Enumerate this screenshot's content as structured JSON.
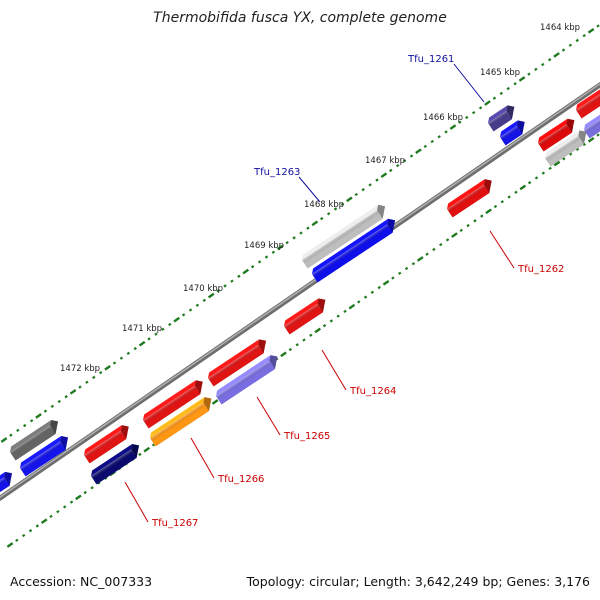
{
  "title": "Thermobifida fusca YX, complete genome",
  "footer": {
    "accession_label": "Accession:",
    "accession": "NC_007333",
    "topology": "Topology: circular; Length: 3,642,249 bp; Genes: 3,176"
  },
  "colors": {
    "backbone": "#808080",
    "tick": "#1e7a1e",
    "label_blue": "#1010a0",
    "label_red": "#cc0000"
  },
  "scale_labels": [
    "1464 kbp",
    "1465 kbp",
    "1466 kbp",
    "1467 kbp",
    "1468 kbp",
    "1469 kbp",
    "1470 kbp",
    "1471 kbp",
    "1472 kbp"
  ],
  "gene_labels": [
    {
      "name": "Tfu_1261",
      "color": "blue"
    },
    {
      "name": "Tfu_1263",
      "color": "blue"
    },
    {
      "name": "Tfu_1262",
      "color": "red"
    },
    {
      "name": "Tfu_1264",
      "color": "red"
    },
    {
      "name": "Tfu_1265",
      "color": "red"
    },
    {
      "name": "Tfu_1266",
      "color": "red"
    },
    {
      "name": "Tfu_1267",
      "color": "red"
    }
  ]
}
